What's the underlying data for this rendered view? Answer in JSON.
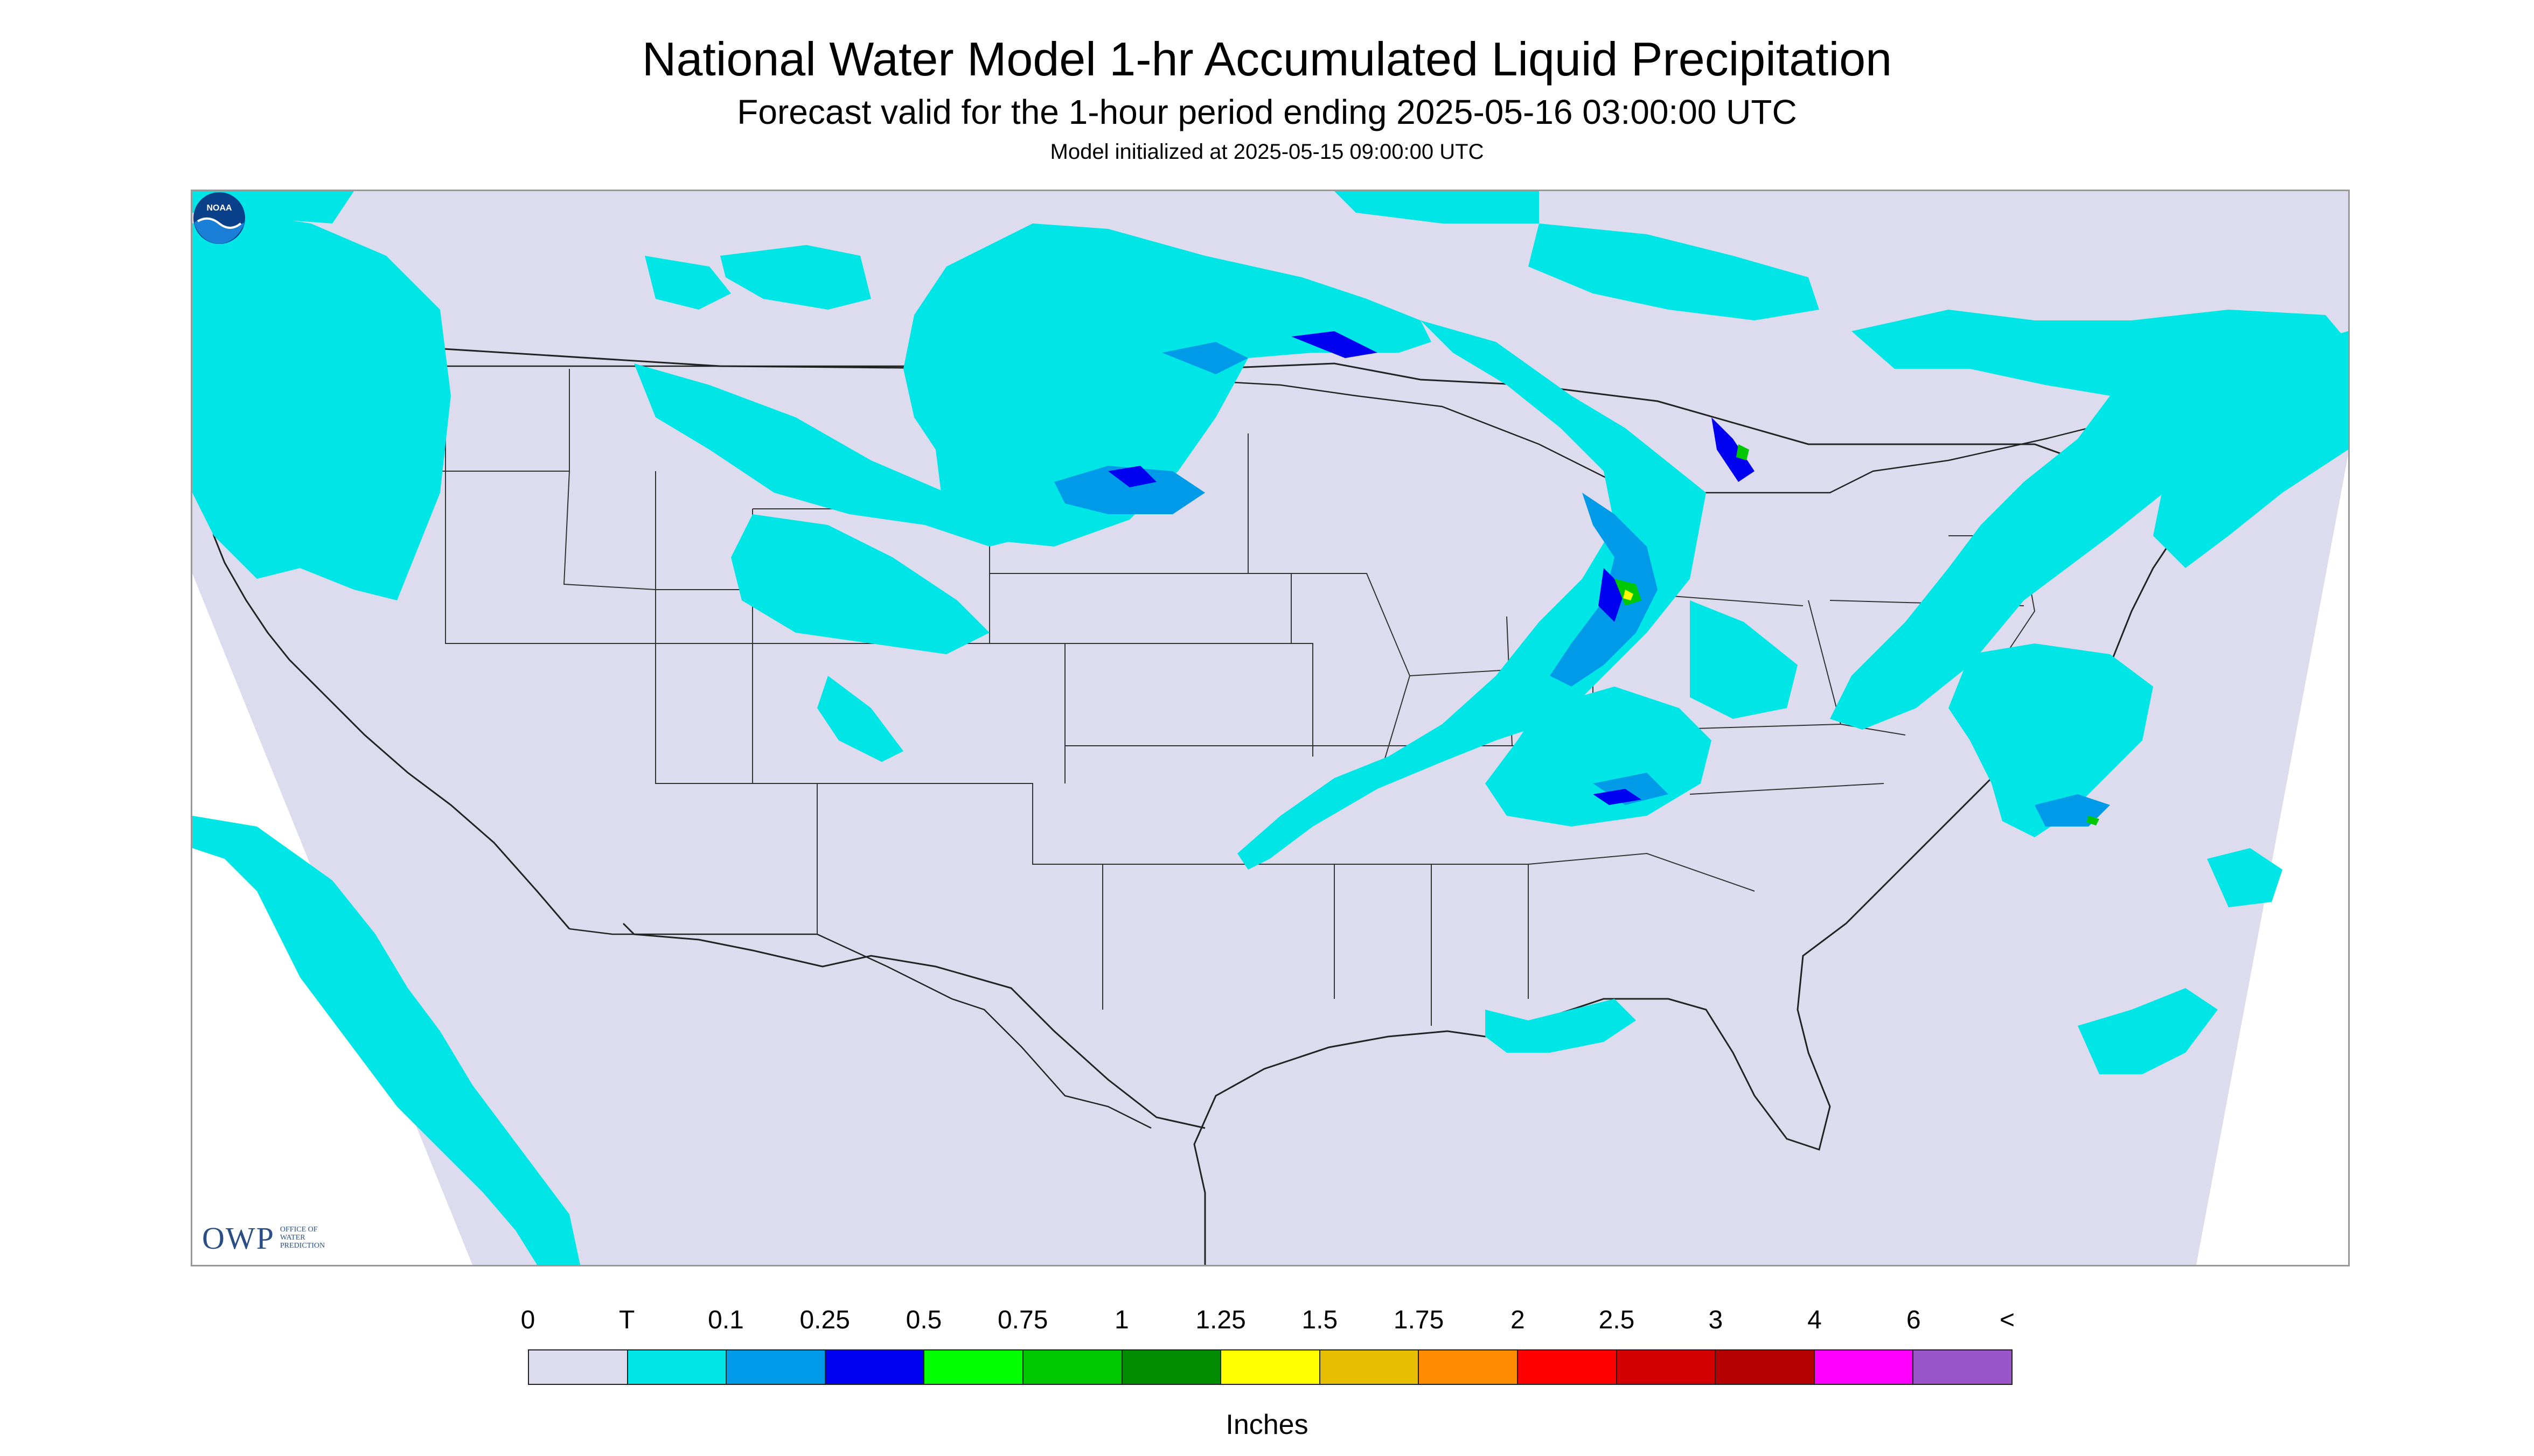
{
  "header": {
    "title": "National Water Model 1-hr Accumulated Liquid Precipitation",
    "subtitle": "Forecast valid for the 1-hour period ending 2025-05-16 03:00:00 UTC",
    "init_line": "Model initialized at 2025-05-15 09:00:00 UTC"
  },
  "logos": {
    "left": {
      "mark": "OWP",
      "sub_lines": [
        "Office of",
        "Water",
        "Prediction"
      ]
    },
    "right": {
      "icon": "noaa-logo",
      "mark": "NOAA"
    }
  },
  "legend": {
    "labels": [
      "0",
      "T",
      "0.1",
      "0.25",
      "0.5",
      "0.75",
      "1",
      "1.25",
      "1.5",
      "1.75",
      "2",
      "2.5",
      "3",
      "4",
      "6",
      "<"
    ],
    "colors": [
      "#dcdcee",
      "#00e5e6",
      "#009be8",
      "#0000f0",
      "#00ff00",
      "#00c800",
      "#008c00",
      "#ffff00",
      "#e6be00",
      "#ff8c00",
      "#ff0000",
      "#d20000",
      "#b40000",
      "#ff00ff",
      "#9955c8"
    ],
    "units": "Inches"
  },
  "map": {
    "background_color": "#dcdcee",
    "outside_color": "#ffffff",
    "boundary_color": "#222222",
    "precip_light": "#00e5e6",
    "precip_mid": "#009be8",
    "precip_heavy": "#0000f0",
    "precip_green": "#00c800",
    "precip_yellow": "#ffff00"
  }
}
